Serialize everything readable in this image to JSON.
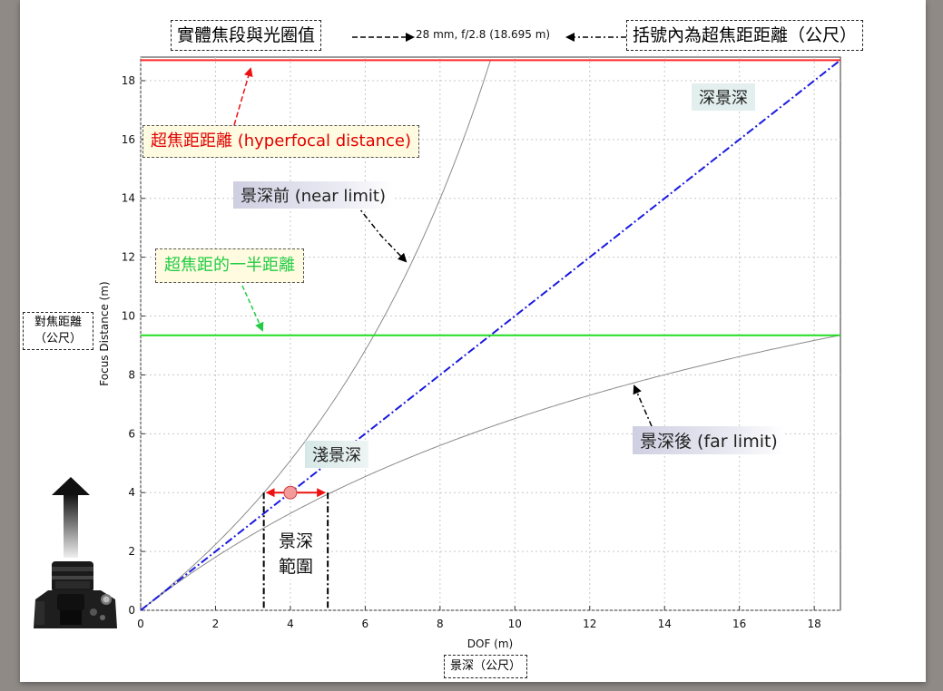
{
  "chart_data": {
    "type": "line",
    "xlabel": "DOF (m)",
    "ylabel": "Focus Distance (m)",
    "xlim": [
      0,
      18.7
    ],
    "ylim": [
      0,
      18.8
    ],
    "x_ticks": [
      "0",
      "2",
      "4",
      "6",
      "8",
      "10",
      "12",
      "14",
      "16",
      "18"
    ],
    "y_ticks": [
      "0",
      "2",
      "4",
      "6",
      "8",
      "10",
      "12",
      "14",
      "16",
      "18"
    ],
    "grid": true,
    "hyperfocal": 18.695,
    "half_hyperfocal": 9.3475,
    "focus_example": 4,
    "near_at_example": 3.29,
    "far_at_example": 5.0,
    "series": [
      {
        "type": "curve",
        "color": "#8a8a8a"
      },
      {
        "type": "curve",
        "color": "#8a8a8a"
      },
      {
        "type": "diagonal",
        "color": "#1a1adf"
      },
      {
        "type": "hline",
        "color": "#ff2a2a"
      },
      {
        "type": "hline",
        "color": "#22dd22"
      }
    ]
  },
  "annotations": {
    "top_left": "實體焦段與光圈值",
    "top_center": "28 mm, f/2.8 (18.695 m)",
    "top_right": "括號內為超焦距距離（公尺）",
    "hyperfocal": "超焦距距離 (hyperfocal distance)",
    "near_limit": "景深前 (near limit)",
    "half_hyperfocal": "超焦距的一半距離",
    "deep_dof": "深景深",
    "shallow_dof": "淺景深",
    "far_limit": "景深後 (far limit)",
    "dof_range_line1": "景深",
    "dof_range_line2": "範圍",
    "y_axis_zh_line1": "對焦距離",
    "y_axis_zh_line2": "（公尺）",
    "x_axis_zh": "景深（公尺）"
  },
  "colors": {
    "hyperfocal_text": "#e00000",
    "half_text": "#22cc44",
    "near_bg": "#dcdcea",
    "far_bg": "#dcdcea",
    "deep_bg": "#e4eeee",
    "shallow_bg": "#e4eeee"
  }
}
